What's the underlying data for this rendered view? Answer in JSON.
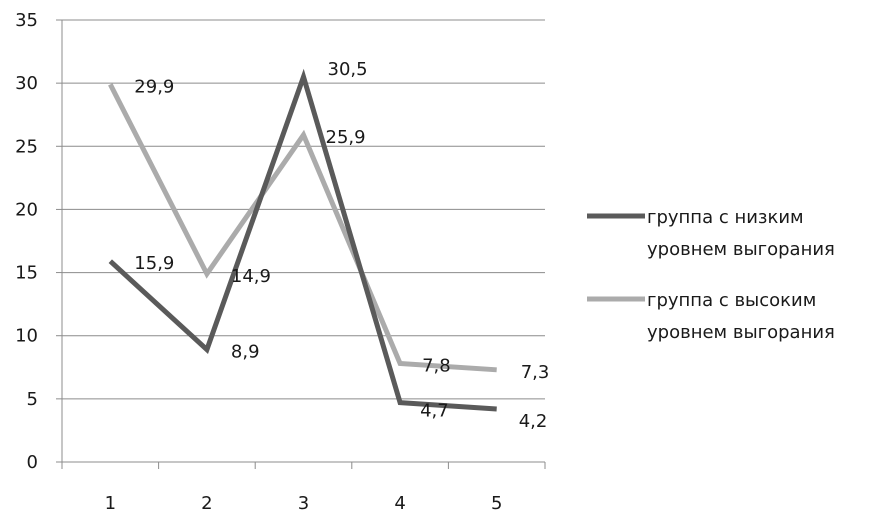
{
  "chart_data": {
    "type": "line",
    "title": "",
    "xlabel": "",
    "ylabel": "",
    "categories": [
      "1",
      "2",
      "3",
      "4",
      "5"
    ],
    "ylim": [
      0,
      35
    ],
    "yticks": [
      "0",
      "5",
      "10",
      "15",
      "20",
      "25",
      "30",
      "35"
    ],
    "grid": true,
    "legend_position": "right",
    "series": [
      {
        "name": "группа с низким уровнем выгорания",
        "legend_lines": [
          "группа с низким",
          "уровнем выгорания"
        ],
        "color": "#5a5a5a",
        "values": [
          15.9,
          8.9,
          30.5,
          4.7,
          4.2
        ],
        "labels": [
          "15,9",
          "8,9",
          "30,5",
          "4,7",
          "4,2"
        ]
      },
      {
        "name": "группа с высоким уровнем выгорания",
        "legend_lines": [
          "группа с высоким",
          "уровнем выгорания"
        ],
        "color": "#ababab",
        "values": [
          29.9,
          14.9,
          25.9,
          7.8,
          7.3
        ],
        "labels": [
          "29,9",
          "14,9",
          "25,9",
          "7,8",
          "7,3"
        ]
      }
    ]
  }
}
